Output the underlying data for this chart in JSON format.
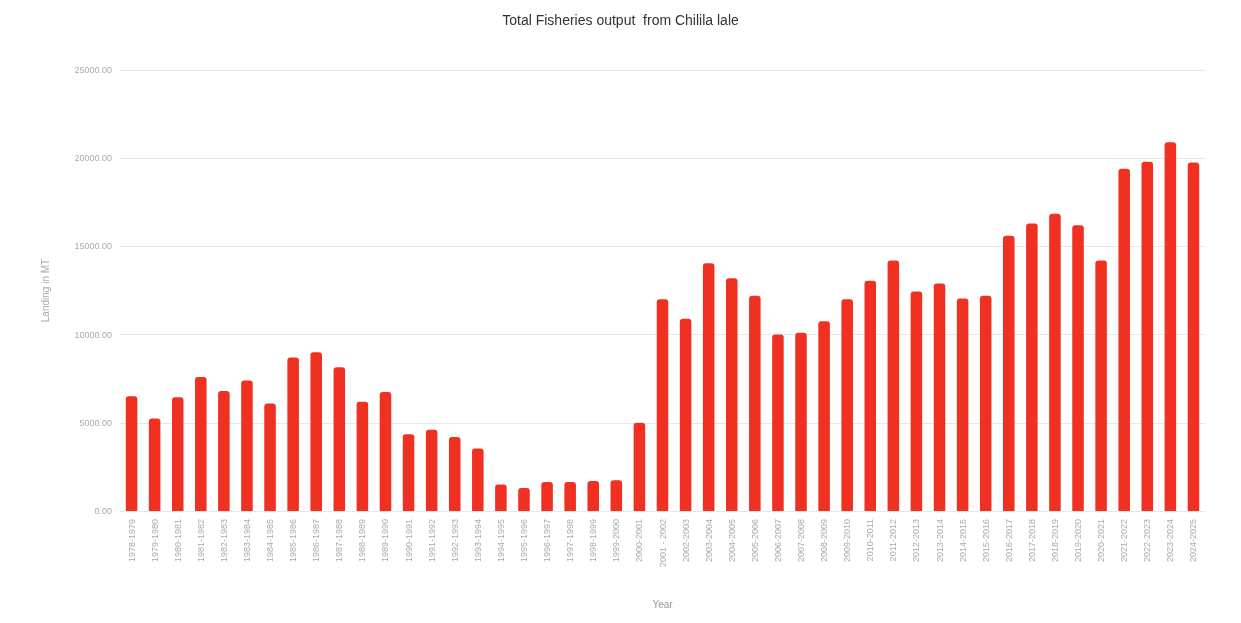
{
  "chart_data": {
    "type": "bar",
    "title": "Total Fisheries output  from Chilila lale",
    "xlabel": "Year",
    "ylabel": "Landing in MT",
    "categories": [
      "1978-1979",
      "1979-1980",
      "1980-1981",
      "1981-1982",
      "1982-1983",
      "1983-1984",
      "1984-1985",
      "1985-1986",
      "1986-1987",
      "1987-1988",
      "1988-1989",
      "1989-1990",
      "1990-1991",
      "1991-1992",
      "1992-1993",
      "1993-1994",
      "1994-1995",
      "1995-1996",
      "1996-1997",
      "1997-1998",
      "1998-1999",
      "1999-2000",
      "2000-2001",
      "2001 - 2002",
      "2002-2003",
      "2003-2004",
      "2004-2005",
      "2005-2006",
      "2006-2007",
      "2007-2008",
      "2008-2009",
      "2009-2010",
      "2010-2011",
      "2011-2012",
      "2012-2013",
      "2013-2014",
      "2014-2015",
      "2015-2016",
      "2016-2017",
      "2017-2018",
      "2018-2019",
      "2019-2020",
      "2020-2021",
      "2021-2022",
      "2022-2023",
      "2023-2024",
      "2024-2025"
    ],
    "values": [
      6500,
      5250,
      6450,
      7600,
      6800,
      7400,
      6100,
      8700,
      9000,
      8150,
      6200,
      6750,
      4350,
      4600,
      4200,
      3550,
      1500,
      1300,
      1650,
      1650,
      1700,
      1750,
      5000,
      12000,
      10900,
      14050,
      13200,
      12200,
      10000,
      10100,
      10750,
      12000,
      13050,
      14200,
      12450,
      12900,
      12050,
      12200,
      15600,
      16300,
      16850,
      16200,
      14200,
      19400,
      19800,
      20900,
      19750
    ],
    "color": "#f03020",
    "ylim": [
      0,
      25000
    ],
    "yticks": [
      {
        "value": 0,
        "label": "0.00"
      },
      {
        "value": 5000,
        "label": "5000.00"
      },
      {
        "value": 10000,
        "label": "10000.00"
      },
      {
        "value": 15000,
        "label": "15000.00"
      },
      {
        "value": 20000,
        "label": "20000.00"
      },
      {
        "value": 25000,
        "label": "25000.00"
      }
    ],
    "grid": "y"
  }
}
